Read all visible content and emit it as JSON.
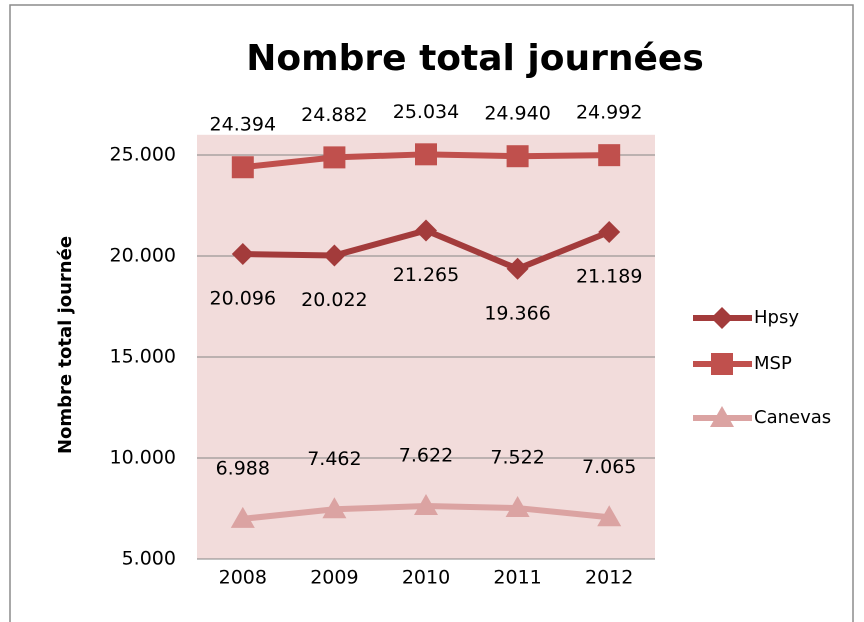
{
  "chart_data": {
    "type": "line",
    "title": "Nombre total journées",
    "y_label": "Nombre total journée",
    "categories": [
      "2008",
      "2009",
      "2010",
      "2011",
      "2012"
    ],
    "series": [
      {
        "name": "Hpsy",
        "color": "#a33b3b",
        "marker": "diamond",
        "values": [
          20096,
          20022,
          21265,
          19366,
          21189
        ],
        "value_labels": [
          "20.096",
          "20.022",
          "21.265",
          "19.366",
          "21.189"
        ]
      },
      {
        "name": "MSP",
        "color": "#c0504d",
        "marker": "square",
        "values": [
          24394,
          24882,
          25034,
          24940,
          24992
        ],
        "value_labels": [
          "24.394",
          "24.882",
          "25.034",
          "24.940",
          "24.992"
        ]
      },
      {
        "name": "Canevas",
        "color": "#dba3a2",
        "marker": "triangle",
        "values": [
          6988,
          7462,
          7622,
          7522,
          7065
        ],
        "value_labels": [
          "6.988",
          "7.462",
          "7.622",
          "7.522",
          "7.065"
        ]
      }
    ],
    "ylim": [
      5000,
      26000
    ],
    "yticks": [
      {
        "value": 5000,
        "label": "5.000"
      },
      {
        "value": 10000,
        "label": "10.000"
      },
      {
        "value": 15000,
        "label": "15.000"
      },
      {
        "value": 20000,
        "label": "20.000"
      },
      {
        "value": 25000,
        "label": "25.000"
      }
    ],
    "grid": true,
    "legend": "right",
    "plot_background": "#f2dcdb"
  }
}
